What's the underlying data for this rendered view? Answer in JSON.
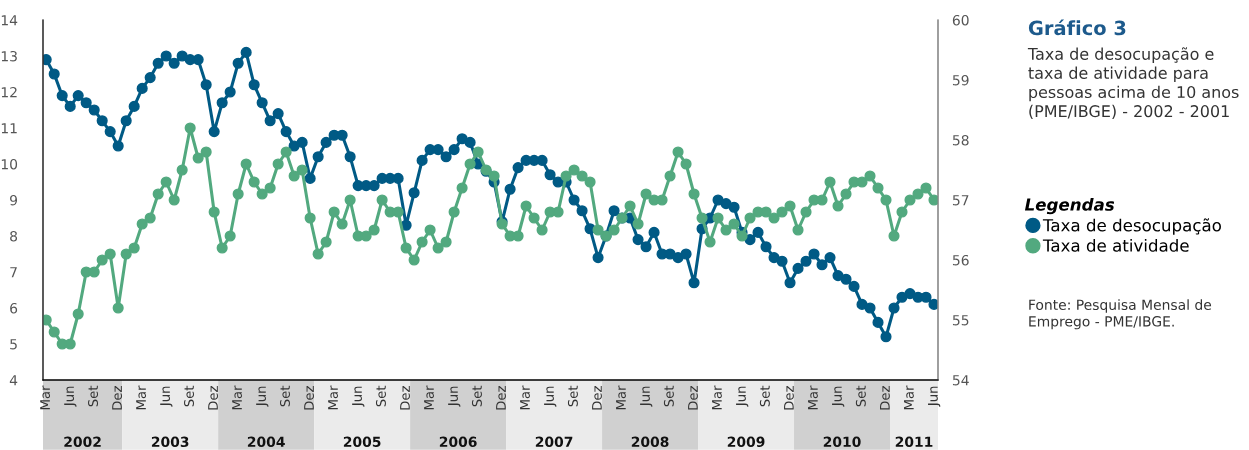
{
  "chart_data": {
    "type": "line",
    "title": "Gráfico 3",
    "subtitle": "Taxa de desocupação e taxa de atividade para pessoas acima de 10 anos (PME/IBGE) - 2002 - 2001",
    "legend_title": "Legendas",
    "legend": "right",
    "marker": "circle",
    "line_style": "solid",
    "grid": false,
    "categories": [
      "Mar",
      null,
      null,
      "Jun",
      null,
      null,
      "Set",
      null,
      null,
      "Dez",
      null,
      null,
      "Mar",
      null,
      null,
      "Jun",
      null,
      null,
      "Set",
      null,
      null,
      "Dez",
      null,
      null,
      "Mar",
      null,
      null,
      "Jun",
      null,
      null,
      "Set",
      null,
      null,
      "Dez",
      null,
      null,
      "Mar",
      null,
      null,
      "Jun",
      null,
      null,
      "Set",
      null,
      null,
      "Dez",
      null,
      null,
      "Mar",
      null,
      null,
      "Jun",
      null,
      null,
      "Set",
      null,
      null,
      "Dez",
      null,
      null,
      "Mar",
      null,
      null,
      "Jun",
      null,
      null,
      "Set",
      null,
      null,
      "Dez",
      null,
      null,
      "Mar",
      null,
      null,
      "Jun",
      null,
      null,
      "Set",
      null,
      null,
      "Dez",
      null,
      null,
      "Mar",
      null,
      null,
      "Jun",
      null,
      null,
      "Set",
      null,
      null,
      "Dez",
      null,
      null,
      "Mar",
      null,
      null,
      "Jun",
      null,
      null,
      "Set",
      null,
      null,
      "Dez",
      null,
      null,
      "Mar",
      null,
      null,
      "Jun"
    ],
    "ylim": [
      4,
      14
    ],
    "yticks": [
      4,
      5,
      6,
      7,
      8,
      9,
      10,
      11,
      12,
      13,
      14
    ],
    "y2lim": [
      54,
      60
    ],
    "y2ticks": [
      54,
      55,
      56,
      57,
      58,
      59,
      60
    ],
    "series": [
      {
        "name": "Taxa de desocupação",
        "color": "#005a85",
        "values": [
          12.9,
          12.5,
          11.9,
          11.6,
          11.9,
          11.7,
          11.5,
          11.2,
          10.9,
          10.5,
          11.2,
          11.6,
          12.1,
          12.4,
          12.8,
          13.0,
          12.8,
          13.0,
          12.9,
          12.9,
          12.2,
          10.9,
          11.7,
          12.0,
          12.8,
          13.1,
          12.2,
          11.7,
          11.2,
          11.4,
          10.9,
          10.5,
          10.6,
          9.6,
          10.2,
          10.6,
          10.8,
          10.8,
          10.2,
          9.4,
          9.4,
          9.4,
          9.6,
          9.6,
          9.6,
          8.3,
          9.2,
          10.1,
          10.4,
          10.4,
          10.2,
          10.4,
          10.7,
          10.6,
          10.0,
          9.8,
          9.5,
          8.4,
          9.3,
          9.9,
          10.1,
          10.1,
          10.1,
          9.7,
          9.5,
          9.5,
          9.0,
          8.7,
          8.2,
          7.4,
          8.0,
          8.7,
          8.5,
          8.5,
          7.9,
          7.7,
          8.1,
          7.5,
          7.5,
          7.4,
          7.5,
          6.7,
          8.2,
          8.5,
          9.0,
          8.9,
          8.8,
          8.1,
          7.9,
          8.1,
          7.7,
          7.4,
          7.3,
          6.7,
          7.1,
          7.3,
          7.5,
          7.2,
          7.4,
          6.9,
          6.8,
          6.6,
          6.1,
          6.0,
          5.6,
          5.2,
          6.0,
          6.3,
          6.4,
          6.3,
          6.3,
          6.1
        ]
      },
      {
        "name": "Taxa de atividade",
        "color": "#52a97f",
        "axis": "y2",
        "values": [
          55.0,
          54.8,
          54.6,
          54.6,
          55.1,
          55.8,
          55.8,
          56.0,
          56.1,
          55.2,
          56.1,
          56.2,
          56.6,
          56.7,
          57.1,
          57.3,
          57.0,
          57.5,
          58.2,
          57.7,
          57.8,
          56.8,
          56.2,
          56.4,
          57.1,
          57.6,
          57.3,
          57.1,
          57.2,
          57.6,
          57.8,
          57.4,
          57.5,
          56.7,
          56.1,
          56.3,
          56.8,
          56.6,
          57.0,
          56.4,
          56.4,
          56.5,
          57.0,
          56.8,
          56.8,
          56.2,
          56.0,
          56.3,
          56.5,
          56.2,
          56.3,
          56.8,
          57.2,
          57.6,
          57.8,
          57.5,
          57.4,
          56.6,
          56.4,
          56.4,
          56.9,
          56.7,
          56.5,
          56.8,
          56.8,
          57.4,
          57.5,
          57.4,
          57.3,
          56.5,
          56.4,
          56.5,
          56.7,
          56.9,
          56.6,
          57.1,
          57.0,
          57.0,
          57.4,
          57.8,
          57.6,
          57.1,
          56.7,
          56.3,
          56.7,
          56.5,
          56.6,
          56.4,
          56.7,
          56.8,
          56.8,
          56.7,
          56.8,
          56.9,
          56.5,
          56.8,
          57.0,
          57.0,
          57.3,
          56.9,
          57.1,
          57.3,
          57.3,
          57.4,
          57.2,
          57.0,
          56.4,
          56.8,
          57.0,
          57.1,
          57.2,
          57.0
        ]
      }
    ],
    "annotations": [
      "2002",
      "2003",
      "2004",
      "2005",
      "2006",
      "2007",
      "2008",
      "2009",
      "2010",
      "2011",
      "Fonte: Pesquisa Mensal de Emprego - PME/IBGE."
    ]
  }
}
